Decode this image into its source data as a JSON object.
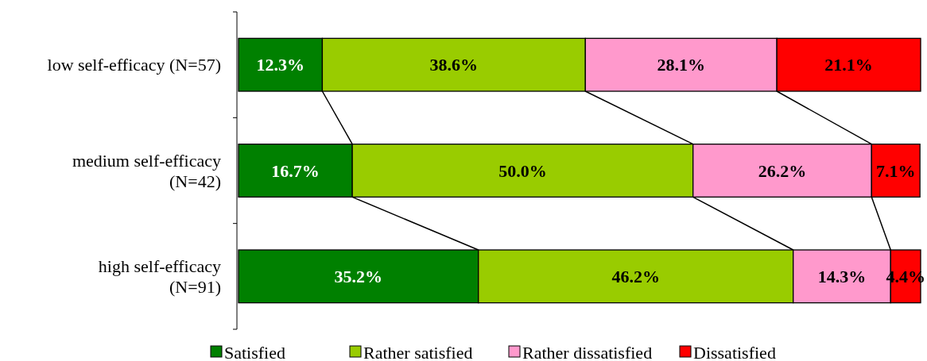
{
  "chart_data": {
    "type": "bar",
    "orientation": "horizontal",
    "stacked": true,
    "xlim": [
      0,
      100.1
    ],
    "legend": "bottom",
    "tick_labels": "y",
    "categories": [
      "low self-efficacy (N=57)",
      "medium self-efficacy (N=42)",
      "high self-efficacy (N=91)"
    ],
    "series": [
      {
        "name": "Satisfied",
        "color": "#008000",
        "values": [
          12.3,
          16.7,
          35.2
        ],
        "value_labels": [
          "12.3%",
          "16.7%",
          "35.2%"
        ]
      },
      {
        "name": "Rather satisfied",
        "color": "#99cc00",
        "values": [
          38.6,
          50.0,
          46.2
        ],
        "value_labels": [
          "38.6%",
          "50.0%",
          "46.2%"
        ]
      },
      {
        "name": "Rather dissatisfied",
        "color": "#ff99cc",
        "values": [
          28.1,
          26.2,
          14.3
        ],
        "value_labels": [
          "28.1%",
          "26.2%",
          "14.3%"
        ]
      },
      {
        "name": "Dissatisfied",
        "color": "#ff0000",
        "values": [
          21.1,
          7.1,
          4.4
        ],
        "value_labels": [
          "21.1%",
          "7.1%",
          "4.4%"
        ]
      }
    ]
  }
}
